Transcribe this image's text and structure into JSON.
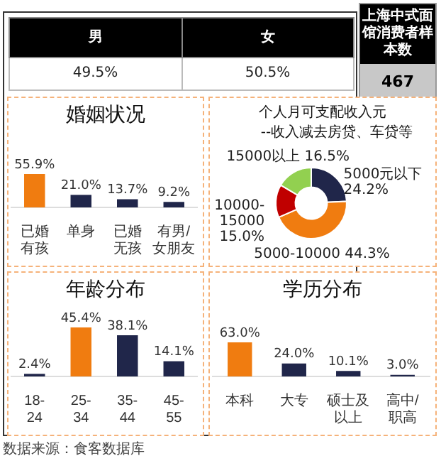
{
  "chart_data": [
    {
      "type": "other",
      "categories": [
        "男",
        "女"
      ],
      "value_labels": [
        "49.5%",
        "50.5%"
      ]
    },
    {
      "type": "other",
      "title": "上海中式面馆消费者样本数",
      "annotations": [
        "467"
      ]
    },
    {
      "type": "bar",
      "title": "婚姻状况",
      "categories": [
        "已婚有孩",
        "单身",
        "已婚无孩",
        "有男/女朋友"
      ],
      "values": [
        55.9,
        21.0,
        13.7,
        9.2
      ],
      "colors": [
        "#f07c10",
        "#20264a",
        "#20264a",
        "#20264a"
      ],
      "value_labels": [
        "55.9%",
        "21.0%",
        "13.7%",
        "9.2%"
      ]
    },
    {
      "type": "donut",
      "title": "个人月可支配收入元",
      "subtitle": "--收入减去房贷、车贷等",
      "categories": [
        "5000元以下",
        "5000-10000",
        "10000-15000",
        "15000以上"
      ],
      "values": [
        24.2,
        44.3,
        15.0,
        16.5
      ],
      "colors": [
        "#20264a",
        "#f07c10",
        "#c00000",
        "#92d050"
      ],
      "value_labels": [
        "24.2%",
        "44.3%",
        "15.0%",
        "16.5%"
      ]
    },
    {
      "type": "bar",
      "title": "年龄分布",
      "categories": [
        "18-24",
        "25-34",
        "35-44",
        "45-55"
      ],
      "values": [
        2.4,
        45.4,
        38.1,
        14.1
      ],
      "colors": [
        "#20264a",
        "#f07c10",
        "#20264a",
        "#20264a"
      ],
      "value_labels": [
        "2.4%",
        "45.4%",
        "38.1%",
        "14.1%"
      ]
    },
    {
      "type": "bar",
      "title": "学历分布",
      "categories": [
        "本科",
        "大专",
        "硕士及以上",
        "高中/职高"
      ],
      "values": [
        63.0,
        24.0,
        10.1,
        3.0
      ],
      "colors": [
        "#f07c10",
        "#20264a",
        "#20264a",
        "#20264a"
      ],
      "value_labels": [
        "63.0%",
        "24.0%",
        "10.1%",
        "3.0%"
      ],
      "annotations": [
        "数据来源：食客数据库"
      ]
    }
  ]
}
